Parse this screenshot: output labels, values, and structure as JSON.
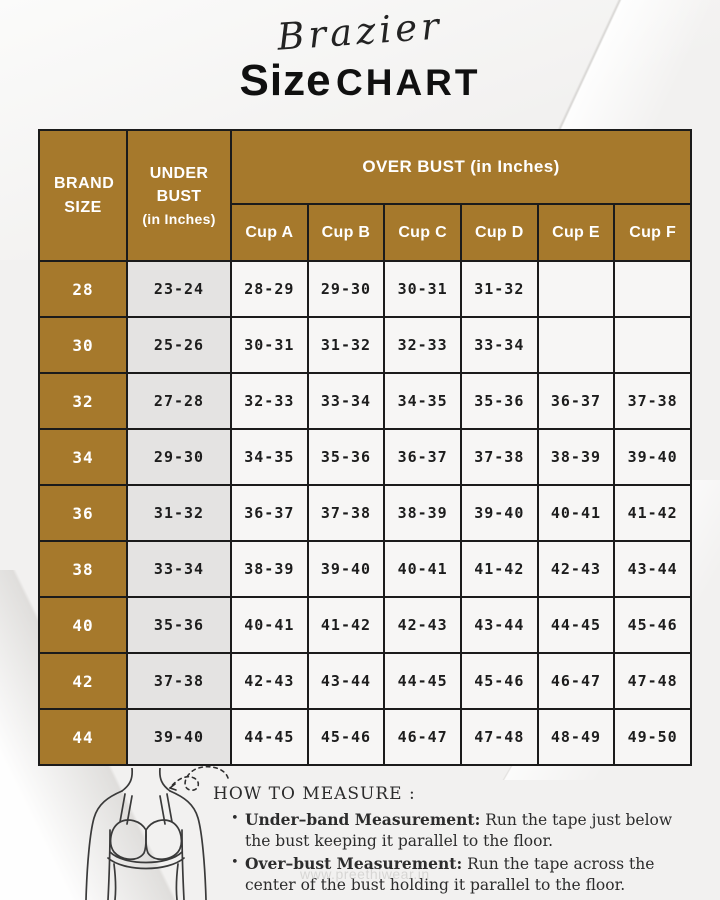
{
  "header": {
    "script_title": "Brazier",
    "title_primary": "Size",
    "title_secondary": "CHART"
  },
  "table": {
    "headers": {
      "brand_size": "BRAND SIZE",
      "under_bust": "UNDER BUST",
      "under_bust_note": "(in Inches)",
      "over_bust": "OVER BUST (in Inches)",
      "cups": [
        "Cup A",
        "Cup B",
        "Cup C",
        "Cup D",
        "Cup E",
        "Cup F"
      ]
    },
    "rows": [
      {
        "brand": "28",
        "under": "23-24",
        "cups": [
          "28-29",
          "29-30",
          "30-31",
          "31-32",
          "",
          ""
        ]
      },
      {
        "brand": "30",
        "under": "25-26",
        "cups": [
          "30-31",
          "31-32",
          "32-33",
          "33-34",
          "",
          ""
        ]
      },
      {
        "brand": "32",
        "under": "27-28",
        "cups": [
          "32-33",
          "33-34",
          "34-35",
          "35-36",
          "36-37",
          "37-38"
        ]
      },
      {
        "brand": "34",
        "under": "29-30",
        "cups": [
          "34-35",
          "35-36",
          "36-37",
          "37-38",
          "38-39",
          "39-40"
        ]
      },
      {
        "brand": "36",
        "under": "31-32",
        "cups": [
          "36-37",
          "37-38",
          "38-39",
          "39-40",
          "40-41",
          "41-42"
        ]
      },
      {
        "brand": "38",
        "under": "33-34",
        "cups": [
          "38-39",
          "39-40",
          "40-41",
          "41-42",
          "42-43",
          "43-44"
        ]
      },
      {
        "brand": "40",
        "under": "35-36",
        "cups": [
          "40-41",
          "41-42",
          "42-43",
          "43-44",
          "44-45",
          "45-46"
        ]
      },
      {
        "brand": "42",
        "under": "37-38",
        "cups": [
          "42-43",
          "43-44",
          "44-45",
          "45-46",
          "46-47",
          "47-48"
        ]
      },
      {
        "brand": "44",
        "under": "39-40",
        "cups": [
          "44-45",
          "45-46",
          "46-47",
          "47-48",
          "48-49",
          "49-50"
        ]
      }
    ]
  },
  "how_to_measure": {
    "heading": "HOW TO MEASURE :",
    "items": [
      {
        "label": "Under–band Measurement:",
        "text": " Run the tape just below the bust keeping it parallel to the floor."
      },
      {
        "label": "Over–bust Measurement:",
        "text": " Run the tape across the center of the bust holding it parallel to the floor."
      }
    ]
  },
  "watermark": "www.preethiwear.in",
  "colors": {
    "header_brown": "#a6792c",
    "border": "#1b1b1b",
    "under_bust_bg": "#e4e3e2",
    "cup_cell_bg": "#f7f6f5",
    "page_bg": "#f2f1f0"
  }
}
